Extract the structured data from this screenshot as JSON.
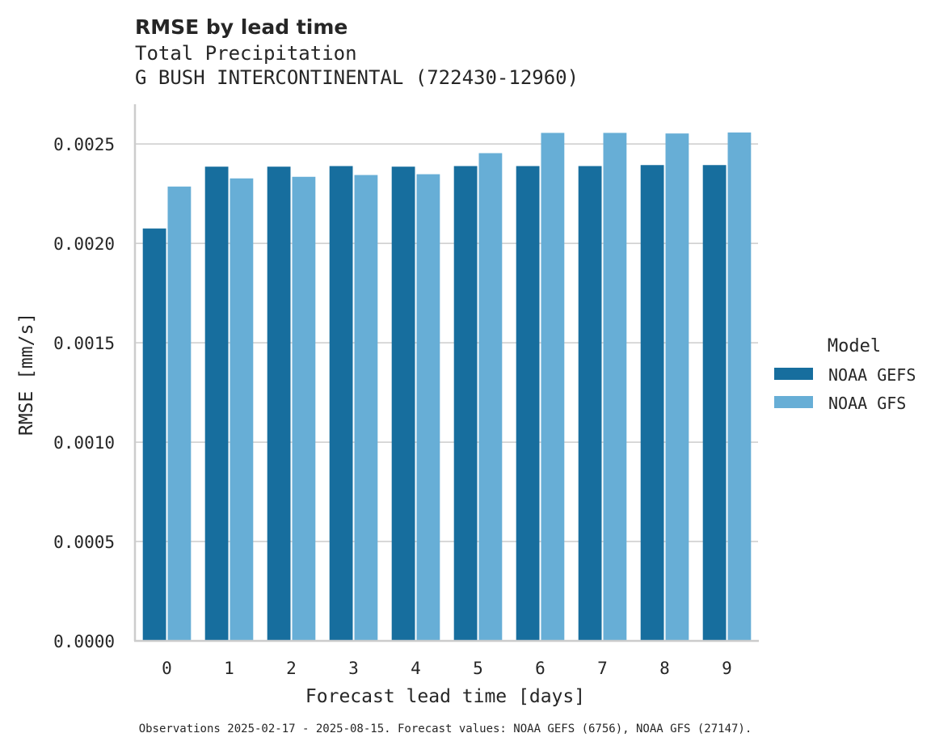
{
  "chart_data": {
    "type": "bar",
    "title": "RMSE by lead time",
    "subtitle_lines": [
      "Total Precipitation",
      "G BUSH INTERCONTINENTAL (722430-12960)"
    ],
    "xlabel": "Forecast lead time [days]",
    "ylabel": "RMSE [mm/s]",
    "categories": [
      "0",
      "1",
      "2",
      "3",
      "4",
      "5",
      "6",
      "7",
      "8",
      "9"
    ],
    "series": [
      {
        "name": "NOAA GEFS",
        "color": "#176e9e",
        "values": [
          0.002075,
          0.002386,
          0.002386,
          0.002389,
          0.002386,
          0.002389,
          0.002389,
          0.002389,
          0.002394,
          0.002394
        ]
      },
      {
        "name": "NOAA GFS",
        "color": "#67aed6",
        "values": [
          0.002286,
          0.002327,
          0.002335,
          0.002344,
          0.002348,
          0.002454,
          0.002556,
          0.002556,
          0.002553,
          0.002558
        ]
      }
    ],
    "ylim": [
      0,
      0.0027
    ],
    "yticks": [
      0.0,
      0.0005,
      0.001,
      0.0015,
      0.002,
      0.0025
    ],
    "ytick_labels": [
      "0.0000",
      "0.0005",
      "0.0010",
      "0.0015",
      "0.0020",
      "0.0025"
    ],
    "grid": true,
    "legend": {
      "title": "Model",
      "position": "right"
    },
    "footnote": "Observations 2025-02-17 - 2025-08-15. Forecast values: NOAA GEFS (6756), NOAA GFS (27147)."
  }
}
